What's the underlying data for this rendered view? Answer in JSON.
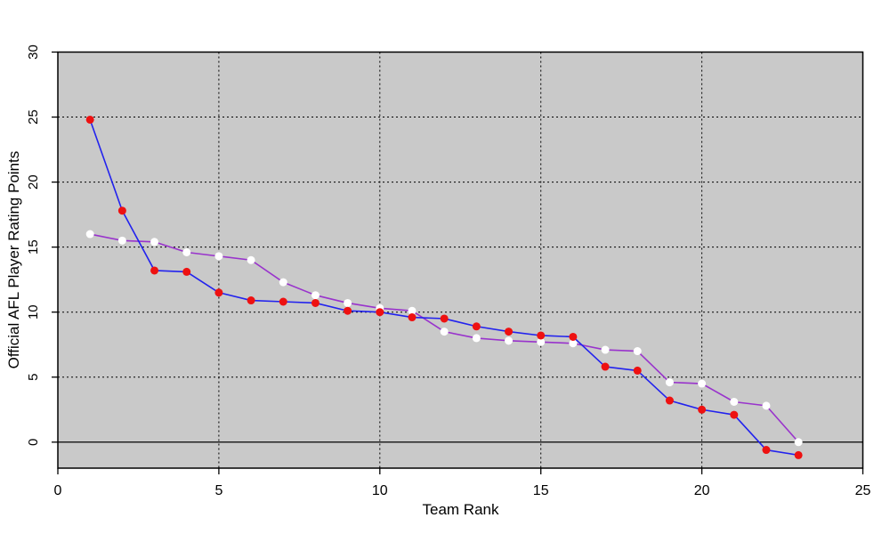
{
  "chart_data": {
    "type": "line",
    "title": "",
    "xlabel": "Team Rank",
    "ylabel": "Official AFL Player Rating Points",
    "x": [
      1,
      2,
      3,
      4,
      5,
      6,
      7,
      8,
      9,
      10,
      11,
      12,
      13,
      14,
      15,
      16,
      17,
      18,
      19,
      20,
      21,
      22,
      23
    ],
    "series": [
      {
        "name": "white-marker-series",
        "line_color": "#9933cc",
        "marker_color": "#ffffff",
        "values": [
          16.0,
          15.5,
          15.4,
          14.6,
          14.3,
          14.0,
          12.3,
          11.3,
          10.7,
          10.3,
          10.1,
          8.5,
          8.0,
          7.8,
          7.7,
          7.6,
          7.1,
          7.0,
          4.6,
          4.5,
          3.1,
          2.8,
          0.0
        ]
      },
      {
        "name": "red-marker-series",
        "line_color": "#2222ee",
        "marker_color": "#ee1111",
        "values": [
          24.8,
          17.8,
          13.2,
          13.1,
          11.5,
          10.9,
          10.8,
          10.7,
          10.1,
          10.0,
          9.6,
          9.5,
          8.9,
          8.5,
          8.2,
          8.1,
          5.8,
          5.5,
          3.2,
          2.5,
          2.1,
          -0.6,
          -1.0
        ]
      }
    ],
    "xlim": [
      0,
      25
    ],
    "ylim": [
      -2,
      30
    ],
    "xticks": [
      "0",
      "5",
      "10",
      "15",
      "20",
      "25"
    ],
    "yticks": [
      "0",
      "5",
      "10",
      "15",
      "20",
      "25",
      "30"
    ],
    "grid": "dotted black, horizontal and vertical",
    "zero_line": true,
    "legend": "none",
    "plot_bg_color": "#c9c9c9",
    "outer_bg_color": "#ffffff"
  }
}
